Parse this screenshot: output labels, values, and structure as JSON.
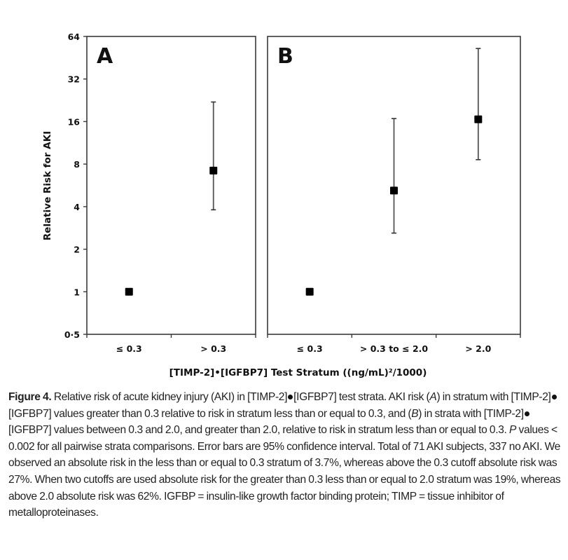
{
  "chart_data": [
    {
      "panel": "A",
      "type": "scatter",
      "subtype": "point-with-error-bars",
      "title": "A",
      "xlabel": "[TIMP-2]•[IGFBP7] Test Stratum ((ng/mL)²/1000)",
      "ylabel": "Relative Risk for AKI",
      "yscale": "log2",
      "ylim": [
        0.5,
        64
      ],
      "yticks": [
        0.5,
        1,
        2,
        4,
        8,
        16,
        32,
        64
      ],
      "ytick_labels": [
        "0·5",
        "1",
        "2",
        "4",
        "8",
        "16",
        "32",
        "64"
      ],
      "categories": [
        "≤ 0.3",
        "> 0.3"
      ],
      "series": [
        {
          "name": "Relative risk",
          "values": [
            1.0,
            7.2
          ],
          "ci_lower": [
            null,
            3.8
          ],
          "ci_upper": [
            null,
            22.0
          ]
        }
      ],
      "grid": false,
      "legend": null
    },
    {
      "panel": "B",
      "type": "scatter",
      "subtype": "point-with-error-bars",
      "title": "B",
      "xlabel": "[TIMP-2]•[IGFBP7] Test Stratum ((ng/mL)²/1000)",
      "ylabel": "Relative Risk for AKI",
      "yscale": "log2",
      "ylim": [
        0.5,
        64
      ],
      "categories": [
        "≤ 0.3",
        "> 0.3 to ≤ 2.0",
        "> 2.0"
      ],
      "series": [
        {
          "name": "Relative risk",
          "values": [
            1.0,
            5.2,
            16.6
          ],
          "ci_lower": [
            null,
            2.6,
            8.6
          ],
          "ci_upper": [
            null,
            16.8,
            52.6
          ]
        }
      ],
      "grid": false,
      "legend": null
    }
  ],
  "figure": {
    "panel_a_label": "A",
    "panel_b_label": "B",
    "ylabel": "Relative Risk for AKI",
    "xlabel": "[TIMP-2]•[IGFBP7] Test Stratum ((ng/mL)²/1000)",
    "yticks": [
      "64",
      "32",
      "16",
      "8",
      "4",
      "2",
      "1",
      "0·5"
    ],
    "panel_a_categories": [
      "≤ 0.3",
      "> 0.3"
    ],
    "panel_b_categories": [
      "≤ 0.3",
      "> 0.3 to ≤ 2.0",
      "> 2.0"
    ]
  },
  "caption": {
    "label": "Figure 4.",
    "segments": [
      " Relative risk of acute kidney injury (AKI) in [TIMP-2]",
      "[IGFBP7] test strata. AKI risk (",
      "A",
      ") in stratum with [TIMP-2]",
      "[IGFBP7] values greater than 0.3 relative to risk in stratum less than or equal to 0.3, and (",
      "B",
      ") in strata with [TIMP-2]",
      "[IGFBP7] values between 0.3 and 2.0, and greater than 2.0, relative to risk in stratum less than or equal to 0.3. ",
      "P",
      " values < 0.002 for all pairwise strata comparisons. Error bars are 95% confidence interval. Total of 71 AKI subjects, 337 no AKI. We observed an absolute risk in the less than or equal to 0.3 stratum of 3.7%, whereas above the 0.3 cutoff absolute risk was 27%. When two cutoffs are used absolute risk for the greater than 0.3 less than or equal to 2.0 stratum was 19%, whereas above 2.0 absolute risk was 62%. IGFBP = insulin-like growth factor binding protein; TIMP = tissue inhibitor of metalloproteinases."
    ]
  }
}
